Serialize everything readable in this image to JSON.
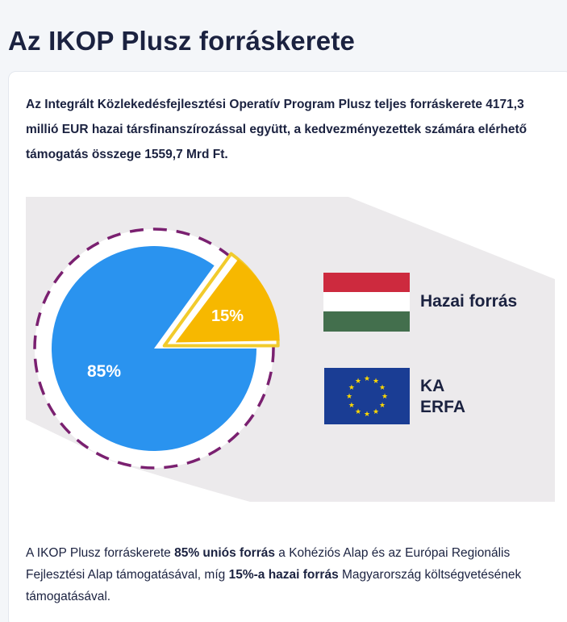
{
  "title": "Az IKOP Plusz forráskerete",
  "intro": "Az Integrált Közlekedésfejlesztési Operatív Program Plusz teljes forráskerete 4171,3 millió EUR hazai társfinanszírozással együtt, a kedvezményezettek számára elérhető támogatás összege 1559,7 Mrd Ft.",
  "chart": {
    "eu_percent_label": "85%",
    "hu_percent_label": "15%",
    "eu_share": 0.85,
    "hu_share": 0.15,
    "colors": {
      "eu": "#2a93ef",
      "hu": "#f7b800",
      "hu_border": "#f1cb2c",
      "ring": "#7a2070",
      "backdrop": "#eceaec"
    }
  },
  "legend": {
    "hu_label": "Hazai forrás",
    "eu_label_1": "KA",
    "eu_label_2": "ERFA",
    "hu_flag_colors": [
      "#cd2a3e",
      "#ffffff",
      "#436f4d"
    ],
    "eu_flag_colors": {
      "field": "#1a3d94",
      "stars": "#ffd900"
    }
  },
  "bottom": {
    "t1": "A IKOP Plusz forráskerete ",
    "b1": "85% uniós forrás",
    "t2": " a Kohéziós Alap és az Európai Regionális Fejlesztési Alap támogatásával, míg ",
    "b2": "15%-a hazai forrás",
    "t3": " Magyarország költségvetésének támogatásával."
  }
}
